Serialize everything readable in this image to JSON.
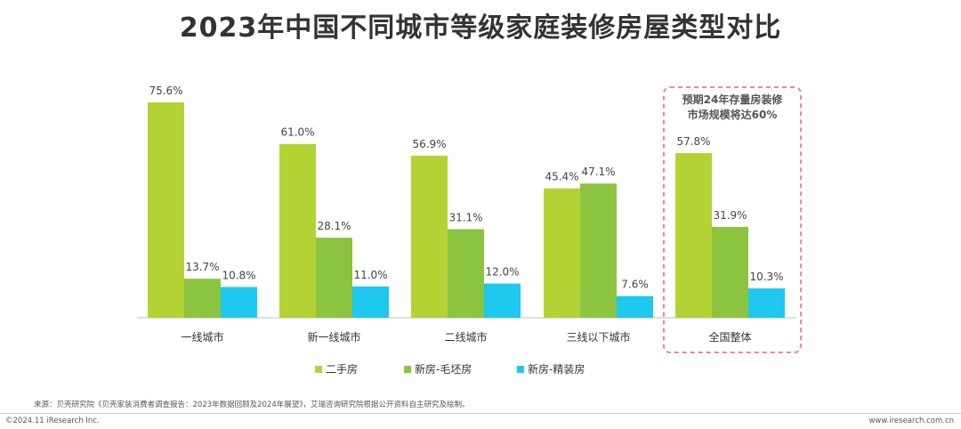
{
  "title": "2023年中国不同城市等级家庭装修房屋类型对比",
  "chart_data": {
    "type": "bar",
    "categories": [
      "一线城市",
      "新一线城市",
      "二线城市",
      "三线以下城市",
      "全国整体"
    ],
    "series": [
      {
        "name": "二手房",
        "color": "#b3d334",
        "values": [
          75.6,
          61.0,
          56.9,
          45.4,
          57.8
        ]
      },
      {
        "name": "新房-毛坯房",
        "color": "#8cc43f",
        "values": [
          13.7,
          28.1,
          31.1,
          47.1,
          31.9
        ]
      },
      {
        "name": "新房-精装房",
        "color": "#1ec8ef",
        "values": [
          10.8,
          11.0,
          12.0,
          7.6,
          10.3
        ]
      }
    ],
    "ylim": [
      0,
      80
    ],
    "grid": false,
    "legend": "bottom",
    "value_format": "percent-1dp",
    "callout": {
      "lines": [
        "预期24年存量房装修",
        "市场规模将达60%"
      ],
      "border_color": "#f08a8a"
    }
  },
  "footer": {
    "source": "来源：贝壳研究院《贝壳家装消费者调查报告：2023年数据回顾及2024年展望》，艾瑞咨询研究院根据公开资料自主研究及绘制。",
    "copyright": "©2024.11 iResearch Inc.",
    "website": "www.iresearch.com.cn"
  }
}
